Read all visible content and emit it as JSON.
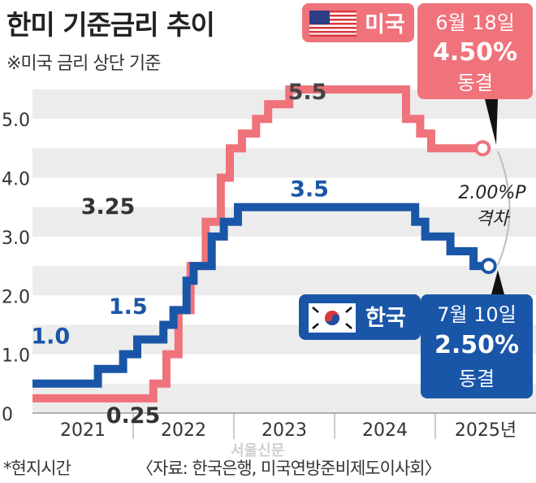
{
  "title": "한미 기준금리 추이",
  "subtitle": "※미국 금리 상단 기준",
  "footnote": "*현지시간",
  "source": "〈자료: 한국은행, 미국연방준비제도이사회〉",
  "watermark": "서울신문",
  "colors": {
    "us": "#f0727b",
    "kr": "#1a56a8",
    "band": "#ececec",
    "text": "#333333"
  },
  "us_box": {
    "flag": "us-flag-icon",
    "country": "미국",
    "date": "6월 18일",
    "rate": "4.50%",
    "status": "동결"
  },
  "kr_box": {
    "flag": "kr-flag-icon",
    "country": "한국",
    "date": "7월 10일",
    "rate": "2.50%",
    "status": "동결"
  },
  "gap_label": {
    "value": "2.00%P",
    "text": "격차"
  },
  "chart_data": {
    "type": "line",
    "x_labels": [
      "2021",
      "2022",
      "2023",
      "2024",
      "2025년"
    ],
    "y_ticks": [
      "0",
      "1.0",
      "2.0",
      "3.0",
      "4.0",
      "5.0"
    ],
    "ylim": [
      0,
      5.5
    ],
    "series": [
      {
        "name": "미국",
        "color": "#f0727b",
        "x": [
          2021.0,
          2022.2,
          2022.33,
          2022.45,
          2022.57,
          2022.72,
          2022.87,
          2022.96,
          2023.08,
          2023.22,
          2023.34,
          2023.55,
          2024.71,
          2024.85,
          2024.96,
          2025.47
        ],
        "values": [
          0.25,
          0.5,
          1.0,
          1.75,
          2.5,
          3.25,
          4.0,
          4.5,
          4.75,
          5.0,
          5.25,
          5.5,
          5.0,
          4.75,
          4.5,
          4.5
        ],
        "labels": [
          "0.25",
          "3.25",
          "5.5"
        ]
      },
      {
        "name": "한국",
        "color": "#1a56a8",
        "x": [
          2021.0,
          2021.65,
          2021.9,
          2022.04,
          2022.3,
          2022.4,
          2022.53,
          2022.6,
          2022.78,
          2022.9,
          2023.04,
          2024.8,
          2024.9,
          2025.15,
          2025.38,
          2025.53
        ],
        "values": [
          0.5,
          0.75,
          1.0,
          1.25,
          1.5,
          1.75,
          2.25,
          2.5,
          3.0,
          3.25,
          3.5,
          3.25,
          3.0,
          2.75,
          2.5,
          2.5
        ],
        "labels": [
          "1.0",
          "1.5",
          "3.5"
        ]
      }
    ]
  }
}
